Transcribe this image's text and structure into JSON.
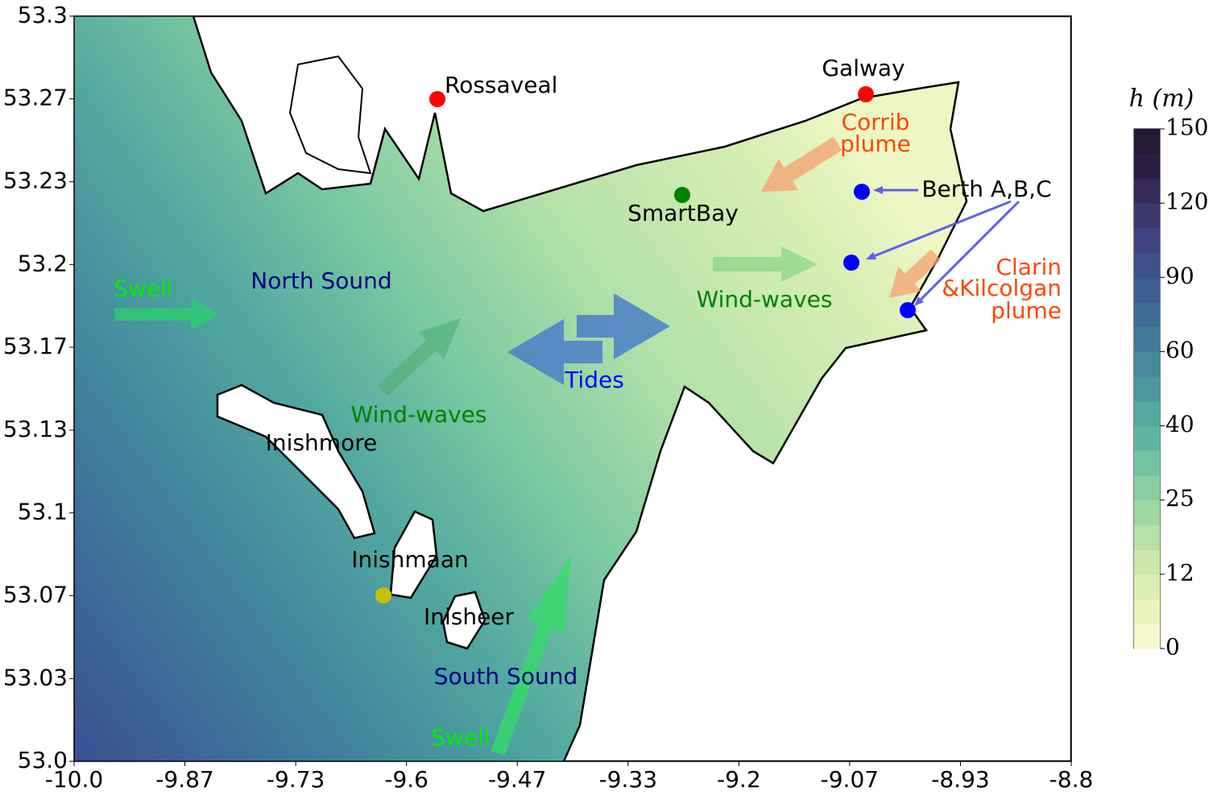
{
  "axes": {
    "xlim": [
      -10,
      -8.8
    ],
    "xticks": [
      {
        "value": -10,
        "label": "-10.0"
      },
      {
        "value": -9.8667,
        "label": "-9.87"
      },
      {
        "value": -9.7333,
        "label": "-9.73"
      },
      -9.6,
      {
        "value": -9.4667,
        "label": "-9.47"
      },
      {
        "value": -9.3333,
        "label": "-9.33"
      },
      -9.2,
      {
        "value": -9.0667,
        "label": "-9.07"
      },
      {
        "value": -8.9333,
        "label": "-8.93"
      },
      -8.8
    ],
    "ylim": [
      53,
      53.3
    ],
    "yticks": [
      {
        "value": 53,
        "label": "53.0"
      },
      {
        "value": 53.0333,
        "label": "53.03"
      },
      {
        "value": 53.0667,
        "label": "53.07"
      },
      53.1,
      {
        "value": 53.1333,
        "label": "53.13"
      },
      {
        "value": 53.1667,
        "label": "53.17"
      },
      53.2,
      {
        "value": 53.2333,
        "label": "53.23"
      },
      {
        "value": 53.2667,
        "label": "53.27"
      },
      53.3
    ]
  },
  "colorbar": {
    "label": "h (m)",
    "ticks": [
      0,
      12,
      25,
      40,
      60,
      90,
      120,
      150
    ]
  },
  "annotations": [
    {
      "text": "Rossaveal",
      "color": "#000000"
    },
    {
      "text": "Galway",
      "color": "#000000"
    },
    {
      "text": "Corrib",
      "color": "#ff4500"
    },
    {
      "text": "plume",
      "color": "#ff4500"
    },
    {
      "text": "SmartBay",
      "color": "#000000"
    },
    {
      "text": "Berth A,B,C",
      "color": "#000000"
    },
    {
      "text": "Clarin",
      "color": "#ff4500"
    },
    {
      "text": "&Kilcolgan",
      "color": "#ff4500"
    },
    {
      "text": "plume",
      "color": "#ff4500"
    },
    {
      "text": "Wind-waves",
      "color": "#008000"
    },
    {
      "text": "North Sound",
      "color": "#000080"
    },
    {
      "text": "Swell",
      "color": "#00ee00"
    },
    {
      "text": "Tides",
      "color": "#0000ff"
    },
    {
      "text": "Wind-waves",
      "color": "#008000"
    },
    {
      "text": "Inishmore",
      "color": "#000000"
    },
    {
      "text": "Inishmaan",
      "color": "#000000"
    },
    {
      "text": "Inisheer",
      "color": "#000000"
    },
    {
      "text": "South Sound",
      "color": "#000080"
    },
    {
      "text": "Swell",
      "color": "#00ee00"
    }
  ]
}
